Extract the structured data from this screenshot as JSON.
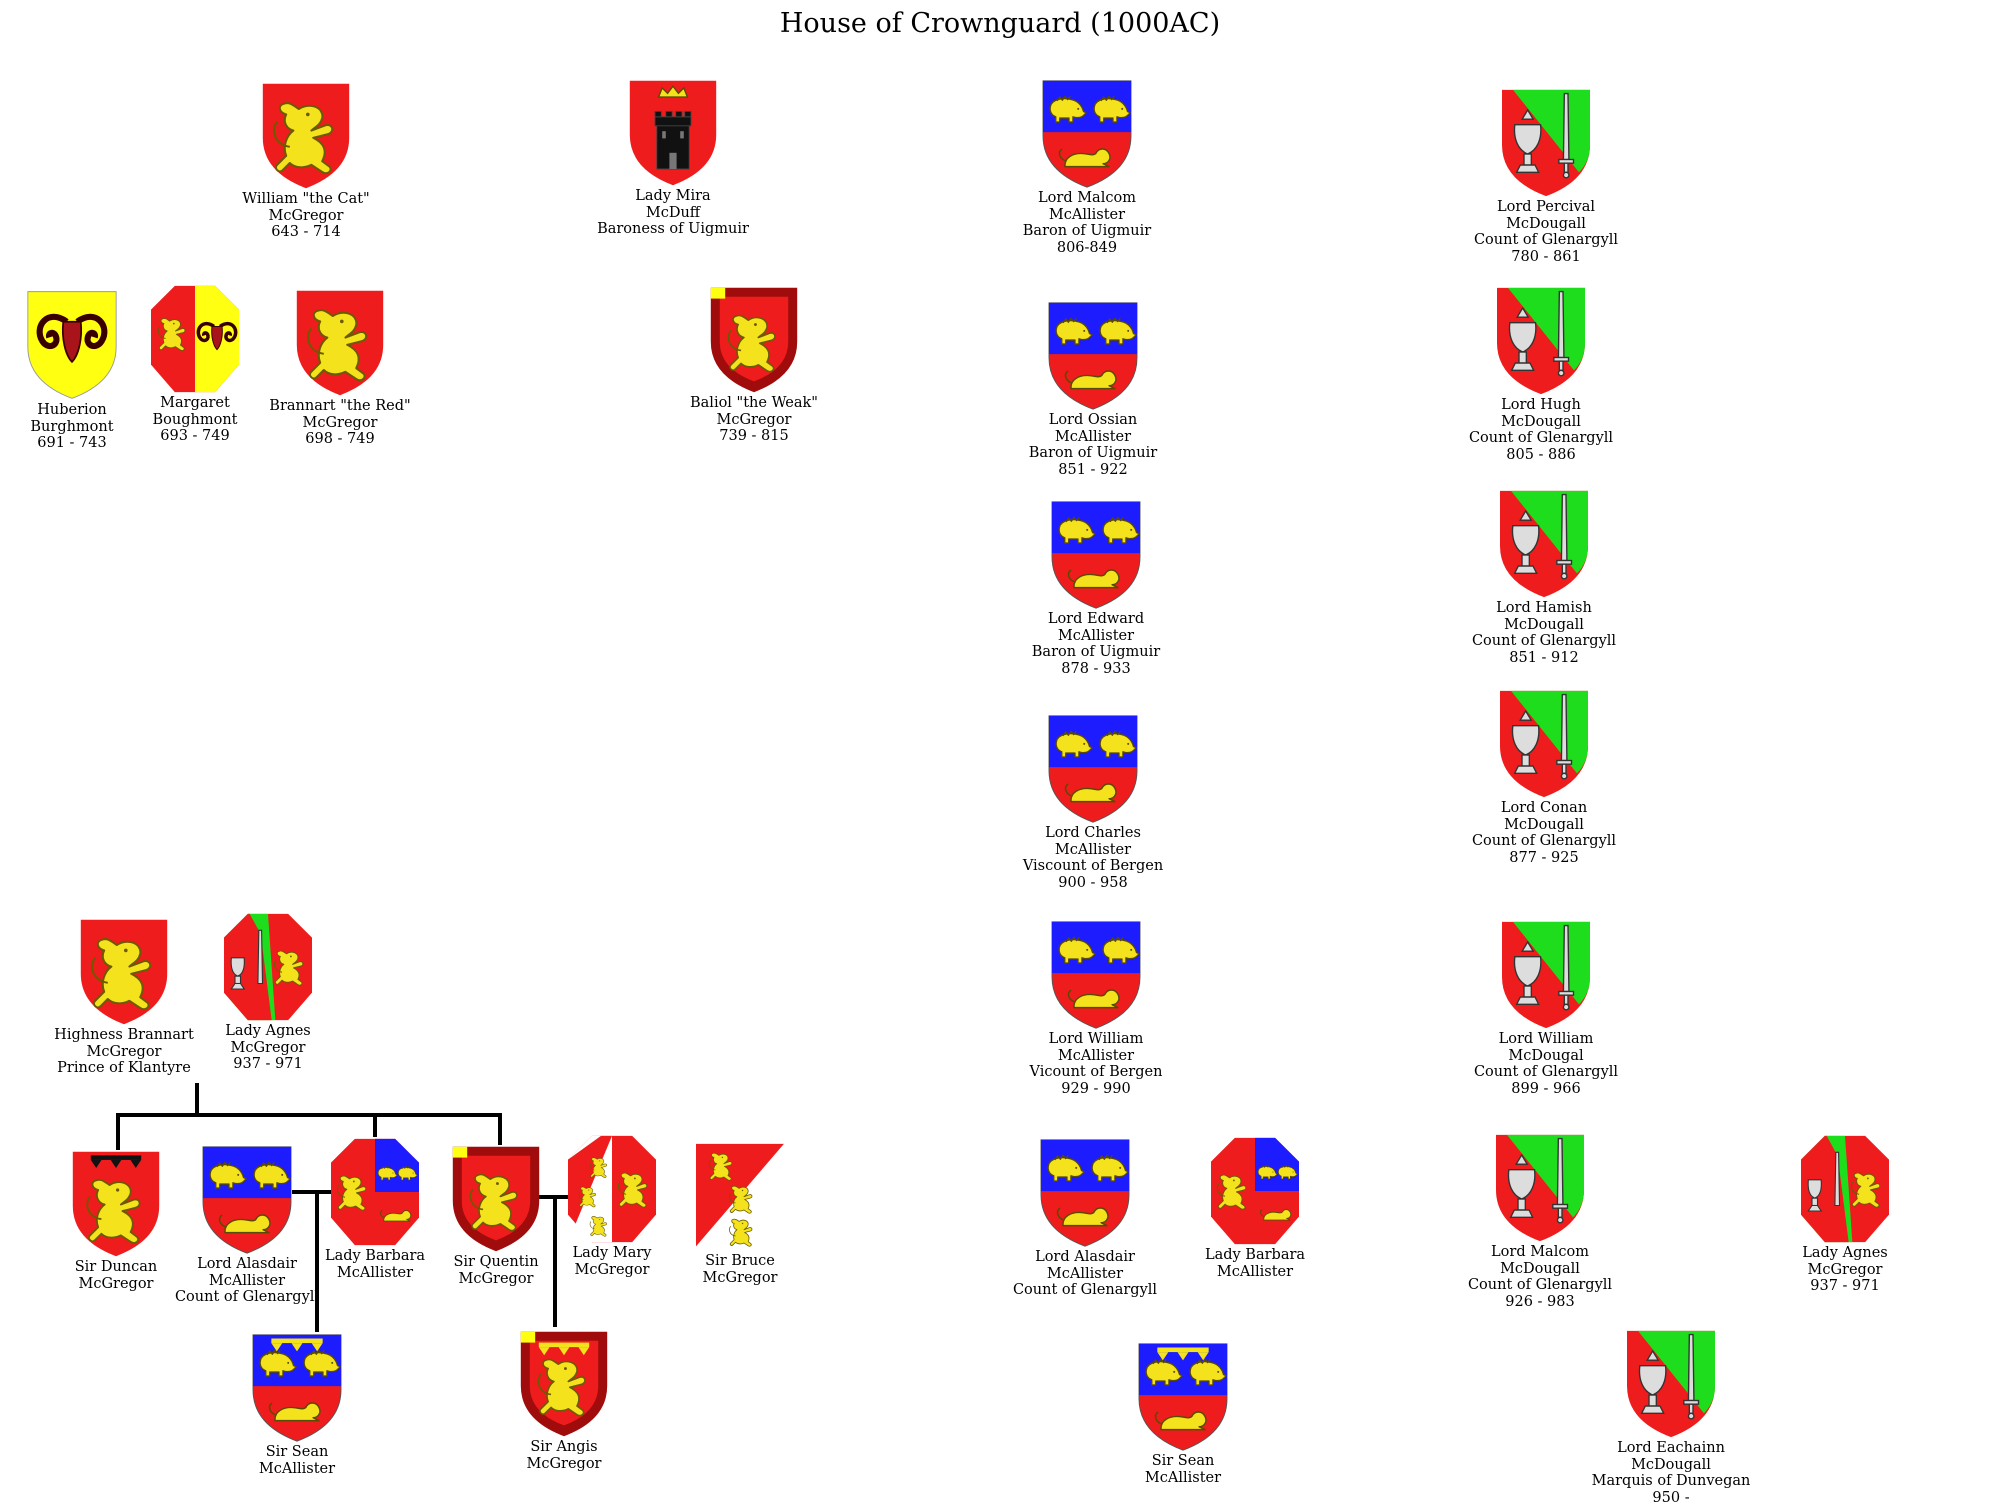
{
  "title": "House of Crownguard (1000AC)",
  "people": [
    {
      "id": "william_cat",
      "arms": "lion-red",
      "lines": [
        "William \"the Cat\"",
        "McGregor",
        "643 - 714"
      ]
    },
    {
      "id": "mira",
      "arms": "tower",
      "lines": [
        "Lady Mira",
        "McDuff",
        "Baroness of Uigmuir"
      ]
    },
    {
      "id": "malcom_mca",
      "arms": "mcallister",
      "lines": [
        "Lord Malcom",
        "McAllister",
        "Baron of Uigmuir",
        "806-849"
      ]
    },
    {
      "id": "percival",
      "arms": "mcdougall",
      "lines": [
        "Lord Percival",
        "McDougall",
        "Count of Glenargyll",
        "780 - 861"
      ]
    },
    {
      "id": "huberion",
      "arms": "ram",
      "lines": [
        "Huberion",
        "Burghmont",
        "691 - 743"
      ]
    },
    {
      "id": "margaret",
      "arms": "impaled-ram",
      "lines": [
        "Margaret",
        "Boughmont",
        "693 - 749"
      ]
    },
    {
      "id": "brannart_red",
      "arms": "lion-red",
      "lines": [
        "Brannart \"the Red\"",
        "McGregor",
        "698 - 749"
      ]
    },
    {
      "id": "baliol",
      "arms": "lion-bordure",
      "lines": [
        "Baliol \"the Weak\"",
        "McGregor",
        "739 - 815"
      ]
    },
    {
      "id": "ossian",
      "arms": "mcallister",
      "lines": [
        "Lord Ossian",
        "McAllister",
        "Baron of Uigmuir",
        "851 - 922"
      ]
    },
    {
      "id": "hugh",
      "arms": "mcdougall",
      "lines": [
        "Lord Hugh",
        "McDougall",
        "Count of Glenargyll",
        "805 - 886"
      ]
    },
    {
      "id": "edward",
      "arms": "mcallister",
      "lines": [
        "Lord Edward",
        "McAllister",
        "Baron of Uigmuir",
        "878 - 933"
      ]
    },
    {
      "id": "hamish",
      "arms": "mcdougall",
      "lines": [
        "Lord Hamish",
        "McDougall",
        "Count of Glenargyll",
        "851 - 912"
      ]
    },
    {
      "id": "charles",
      "arms": "mcallister",
      "lines": [
        "Lord Charles",
        "McAllister",
        "Viscount of Bergen",
        "900 - 958"
      ]
    },
    {
      "id": "conan",
      "arms": "mcdougall",
      "lines": [
        "Lord Conan",
        "McDougall",
        "Count of Glenargyll",
        "877 - 925"
      ]
    },
    {
      "id": "brannart_prince",
      "arms": "lion-red",
      "lines": [
        "Highness Brannart",
        "McGregor",
        "Prince of Klantyre"
      ]
    },
    {
      "id": "agnes_left",
      "arms": "agnes",
      "lines": [
        "Lady Agnes",
        "McGregor",
        "937 - 971"
      ]
    },
    {
      "id": "william_mca",
      "arms": "mcallister",
      "lines": [
        "Lord William",
        "McAllister",
        "Vicount of Bergen",
        "929 - 990"
      ]
    },
    {
      "id": "william_mcd",
      "arms": "mcdougall",
      "lines": [
        "Lord William",
        "McDougal",
        "Count of Glenargyll",
        "899 - 966"
      ]
    },
    {
      "id": "duncan",
      "arms": "lion-label",
      "lines": [
        "Sir Duncan",
        "McGregor"
      ]
    },
    {
      "id": "alasdair_left",
      "arms": "mcallister",
      "lines": [
        "Lord Alasdair",
        "McAllister",
        "Count of Glenargyll"
      ]
    },
    {
      "id": "barbara_left",
      "arms": "barbara",
      "lines": [
        "Lady Barbara",
        "McAllister"
      ]
    },
    {
      "id": "quentin",
      "arms": "lion-bordure",
      "lines": [
        "Sir Quentin",
        "McGregor"
      ]
    },
    {
      "id": "mary",
      "arms": "mary",
      "lines": [
        "Lady Mary",
        "McGregor"
      ]
    },
    {
      "id": "bruce",
      "arms": "bruce",
      "lines": [
        "Sir Bruce",
        "McGregor"
      ]
    },
    {
      "id": "sean_left",
      "arms": "mcallister-label",
      "lines": [
        "Sir Sean",
        "McAllister"
      ]
    },
    {
      "id": "angis",
      "arms": "lion-bordure-label",
      "lines": [
        "Sir Angis",
        "McGregor"
      ]
    },
    {
      "id": "alasdair_right",
      "arms": "mcallister",
      "lines": [
        "Lord Alasdair",
        "McAllister",
        "Count of Glenargyll"
      ]
    },
    {
      "id": "barbara_right",
      "arms": "barbara",
      "lines": [
        "Lady Barbara",
        "McAllister"
      ]
    },
    {
      "id": "malcom_mcd",
      "arms": "mcdougall",
      "lines": [
        "Lord Malcom",
        "McDougall",
        "Count of Glenargyll",
        "926 - 983"
      ]
    },
    {
      "id": "agnes_right",
      "arms": "agnes",
      "lines": [
        "Lady Agnes",
        "McGregor",
        "937 - 971"
      ]
    },
    {
      "id": "sean_right",
      "arms": "mcallister-label",
      "lines": [
        "Sir Sean",
        "McAllister"
      ]
    },
    {
      "id": "eachainn",
      "arms": "mcdougall",
      "lines": [
        "Lord Eachainn",
        "McDougall",
        "Marquis of Dunvegan",
        "950 -"
      ]
    }
  ]
}
